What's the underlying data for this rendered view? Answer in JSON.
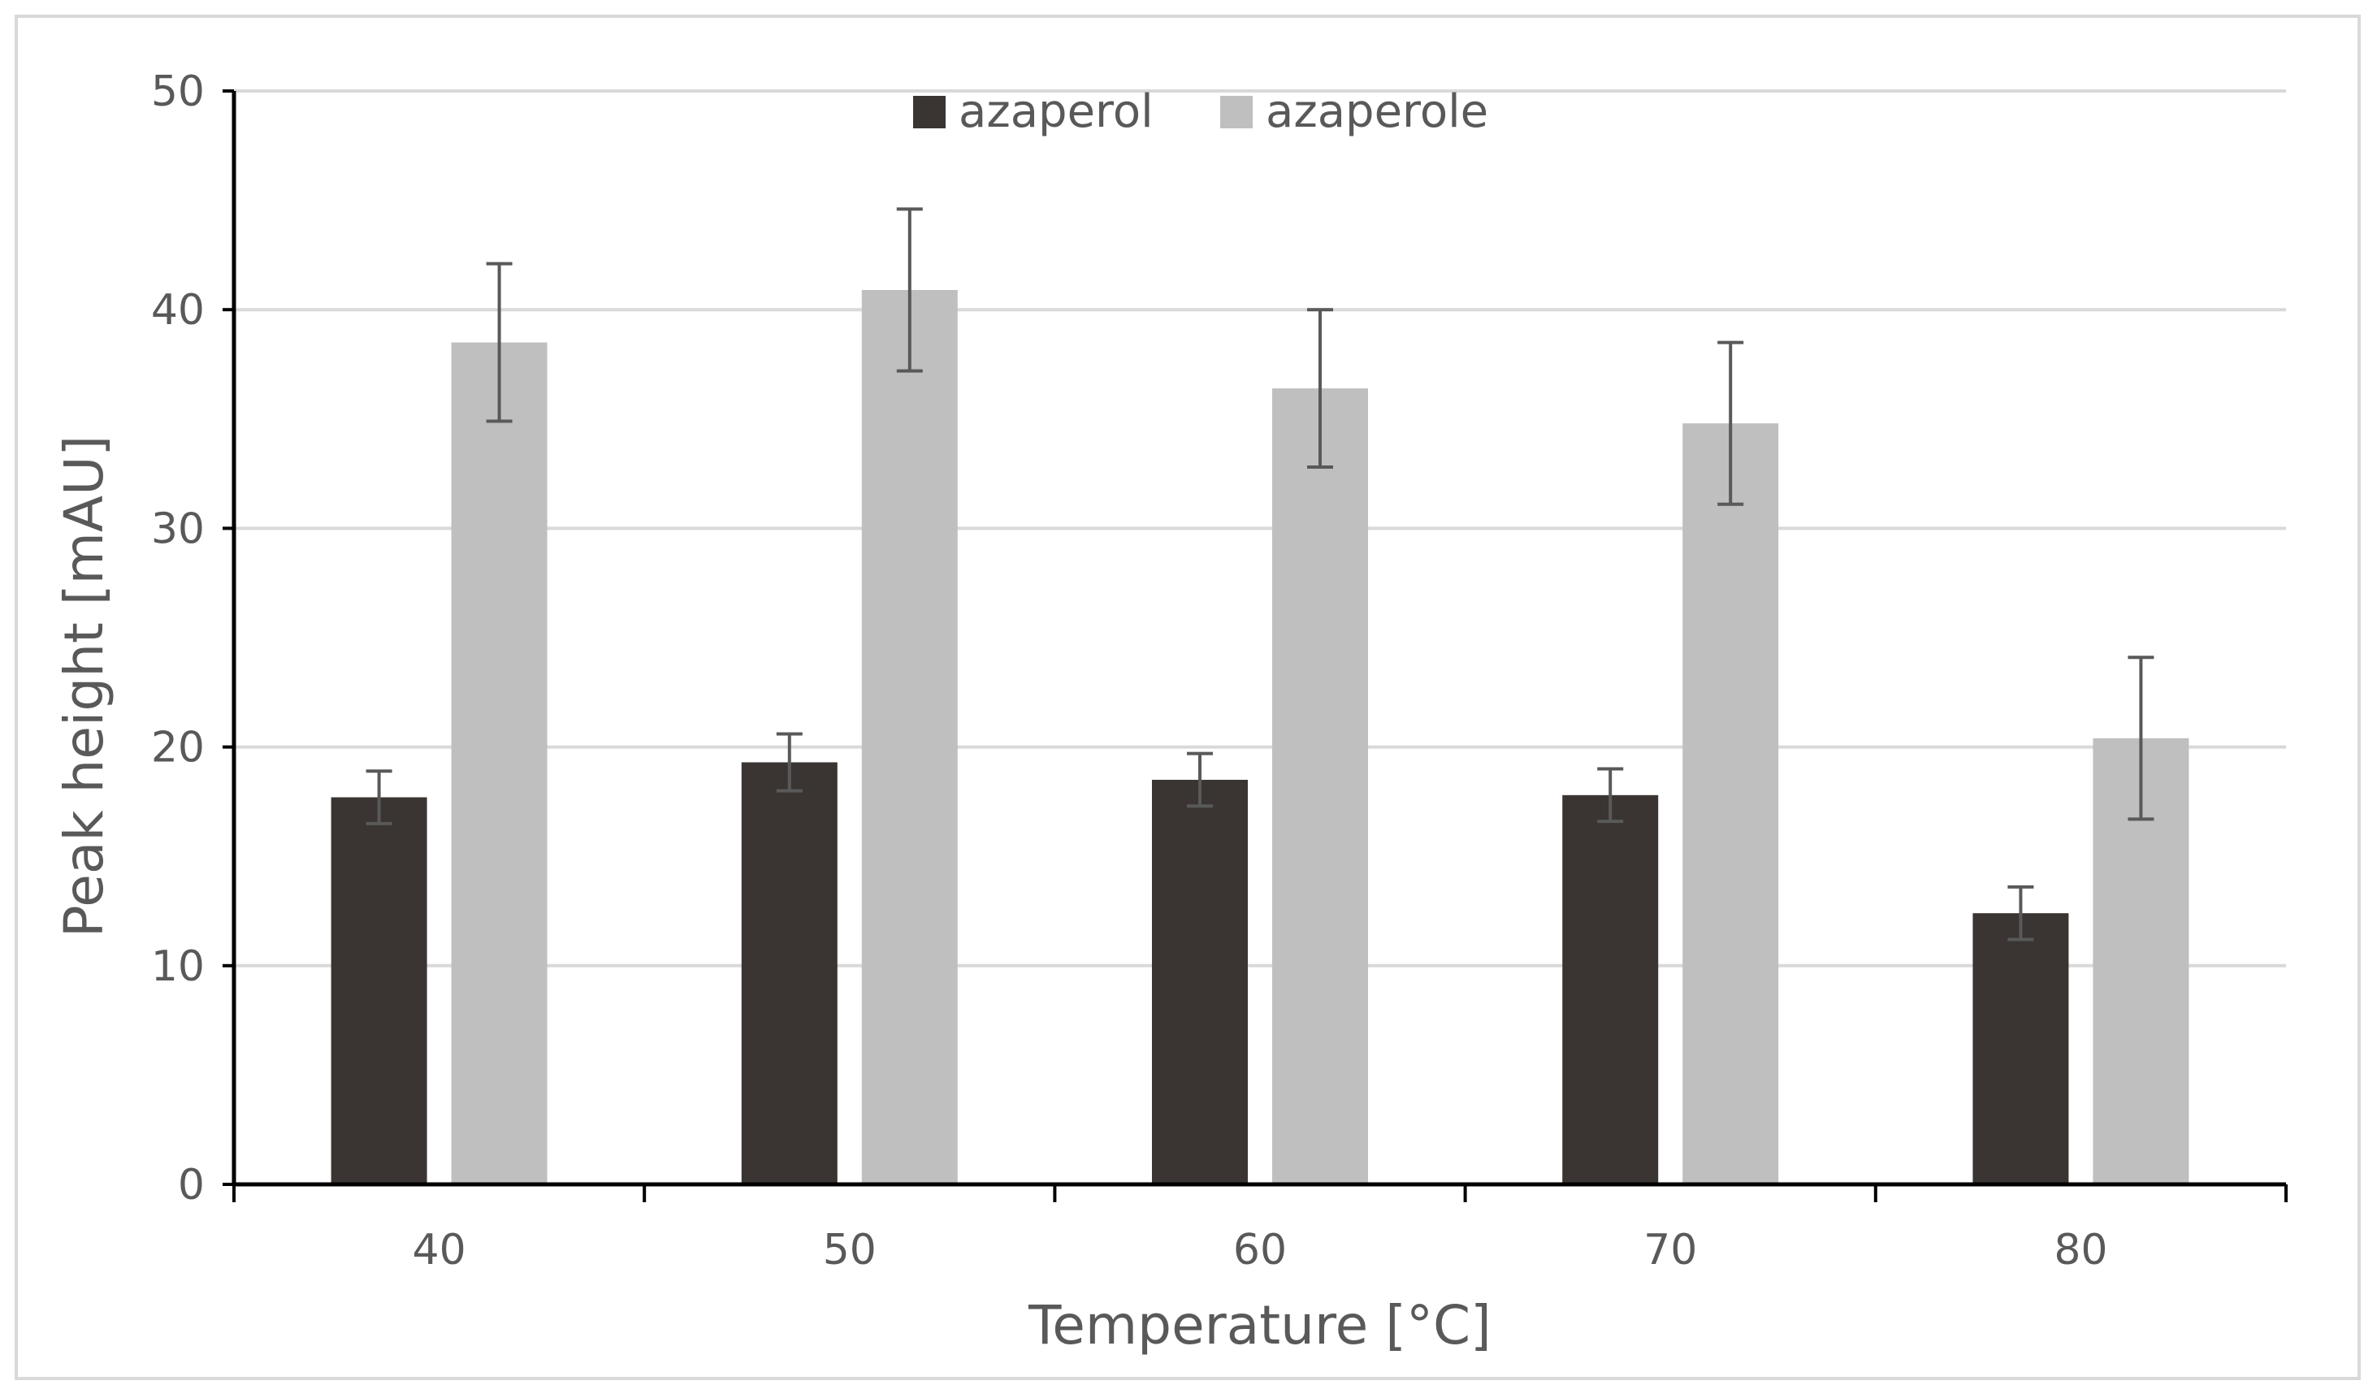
{
  "chart_data": {
    "type": "bar",
    "title": "",
    "xlabel": "Temperature [°C]",
    "ylabel": "Peak height [mAU]",
    "ylim": [
      0,
      50
    ],
    "yticks": [
      "0",
      "10",
      "20",
      "30",
      "40",
      "50"
    ],
    "categories": [
      "40",
      "50",
      "60",
      "70",
      "80"
    ],
    "grid": true,
    "legend_position": "top-center",
    "series": [
      {
        "name": "azaperol",
        "color": "#3a3532",
        "values": [
          17.7,
          19.3,
          18.5,
          17.8,
          12.4
        ],
        "errors": [
          1.2,
          1.3,
          1.2,
          1.2,
          1.2
        ]
      },
      {
        "name": "azaperole",
        "color": "#bfbfbf",
        "values": [
          38.5,
          40.9,
          36.4,
          34.8,
          20.4
        ],
        "errors": [
          3.6,
          3.7,
          3.6,
          3.7,
          3.7
        ]
      }
    ]
  }
}
